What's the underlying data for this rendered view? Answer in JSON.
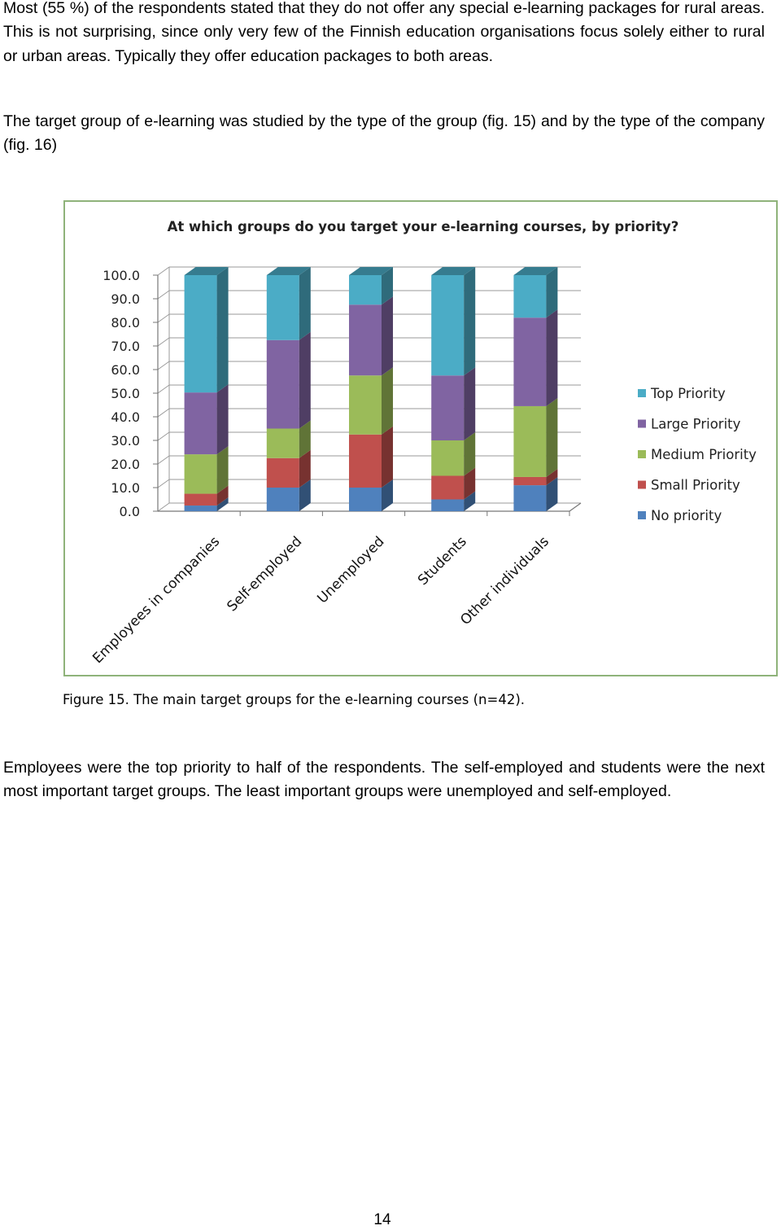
{
  "paragraphs": {
    "p1": "Most (55 %) of the respondents stated that they do not offer any special e-learning packages for rural areas. This is not surprising, since only very few of the Finnish education organisations focus solely either to rural or urban areas. Typically they offer education packages to both areas.",
    "p2": "The target group of e-learning was studied by the type of the group (fig. 15) and by the type of the company (fig. 16)",
    "p3": "Employees were the top priority to half of the respondents. The self-employed and students were the next most important target groups. The least important groups were unemployed and self-employed."
  },
  "caption": "Figure 15. The main target groups for the e-learning courses (n=42).",
  "page_number": "14",
  "chart_data": {
    "type": "bar",
    "stacked": true,
    "three_d": true,
    "title": "At which groups do you target your e-learning courses, by priority?",
    "categories": [
      "Employees in companies",
      "Self-employed",
      "Unemployed",
      "Students",
      "Other individuals"
    ],
    "series": [
      {
        "name": "No priority",
        "values": [
          2.4,
          10.0,
          10.0,
          5.0,
          11.0
        ],
        "color": "#4f81bd"
      },
      {
        "name": "Small Priority",
        "values": [
          5.0,
          12.5,
          22.5,
          10.0,
          3.5
        ],
        "color": "#c0504d"
      },
      {
        "name": "Medium Priority",
        "values": [
          16.7,
          12.5,
          25.0,
          15.0,
          30.0
        ],
        "color": "#9bbb59"
      },
      {
        "name": "Large Priority",
        "values": [
          26.2,
          37.5,
          30.0,
          27.5,
          37.5
        ],
        "color": "#8064a2"
      },
      {
        "name": "Top Priority",
        "values": [
          49.7,
          27.5,
          12.5,
          42.5,
          18.0
        ],
        "color": "#4bacc6"
      }
    ],
    "yticks": [
      "0.0",
      "10.0",
      "20.0",
      "30.0",
      "40.0",
      "50.0",
      "60.0",
      "70.0",
      "80.0",
      "90.0",
      "100.0"
    ],
    "ylim": [
      0,
      100
    ],
    "grid": true,
    "legend_position": "right",
    "legend_order": [
      "Top Priority",
      "Large Priority",
      "Medium Priority",
      "Small Priority",
      "No priority"
    ]
  }
}
